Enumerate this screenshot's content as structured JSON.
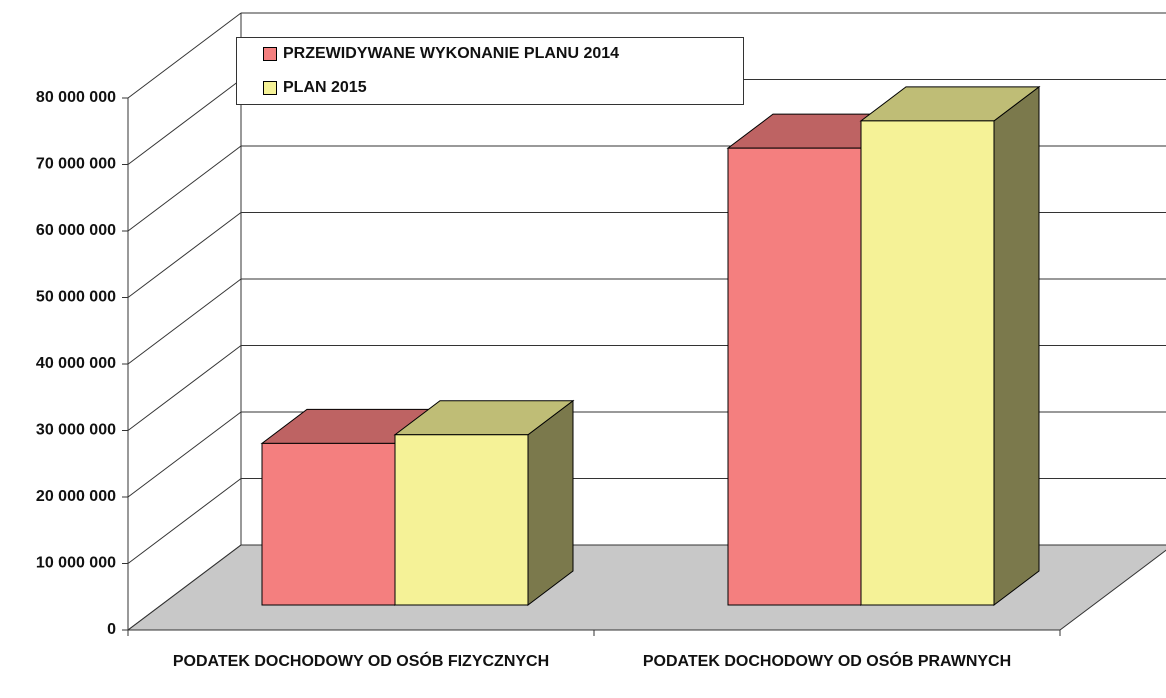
{
  "chart_data": {
    "type": "bar3d",
    "categories": [
      "PODATEK DOCHODOWY OD OSÓB FIZYCZNYCH",
      "PODATEK DOCHODOWY OD OSÓB PRAWNYCH"
    ],
    "series": [
      {
        "name": "PRZEWIDYWANE WYKONANIE PLANU 2014",
        "color": "#f47f7f",
        "values": [
          24300000,
          68700000
        ]
      },
      {
        "name": "PLAN 2015",
        "color": "#f5f297",
        "values": [
          25600000,
          72800000
        ]
      }
    ],
    "ylim": [
      0,
      80000000
    ],
    "yticks": [
      {
        "value": 0,
        "label": "0"
      },
      {
        "value": 10000000,
        "label": "10 000 000"
      },
      {
        "value": 20000000,
        "label": "20 000 000"
      },
      {
        "value": 30000000,
        "label": "30 000 000"
      },
      {
        "value": 40000000,
        "label": "40 000 000"
      },
      {
        "value": 50000000,
        "label": "50 000 000"
      },
      {
        "value": 60000000,
        "label": "60 000 000"
      },
      {
        "value": 70000000,
        "label": "70 000 000"
      },
      {
        "value": 80000000,
        "label": "80 000 000"
      }
    ],
    "grid": true,
    "legend": "top"
  }
}
